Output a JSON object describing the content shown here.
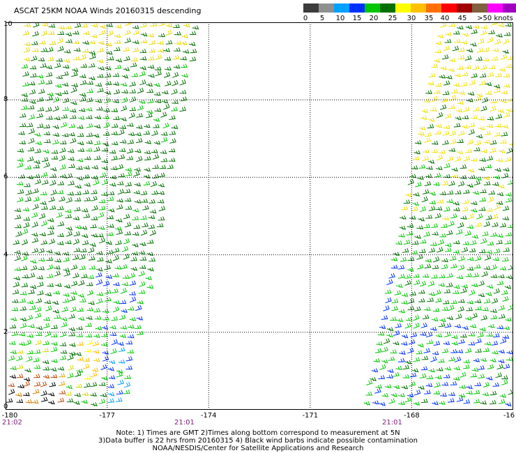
{
  "title": "ASCAT 25KM NOAA Winds 20160315 descending",
  "colorbar": {
    "swatches": [
      {
        "color": "#3c3c3c"
      },
      {
        "color": "#909090"
      },
      {
        "color": "#00a0ff"
      },
      {
        "color": "#0030ff"
      },
      {
        "color": "#00c800"
      },
      {
        "color": "#007000"
      },
      {
        "color": "#ffff00"
      },
      {
        "color": "#ffc000"
      },
      {
        "color": "#ff7000"
      },
      {
        "color": "#ff0000"
      },
      {
        "color": "#a00000"
      },
      {
        "color": "#806040"
      },
      {
        "color": "#ff00ff"
      },
      {
        "color": "#a000c0"
      },
      {
        "color": "#600080"
      }
    ],
    "ticks": [
      "0",
      "5",
      "10",
      "15",
      "20",
      "25",
      "30",
      "35",
      "40",
      "45",
      ">50 knots"
    ]
  },
  "map": {
    "lon_range": [
      -180,
      -165
    ],
    "lat_range": [
      0,
      10
    ],
    "lat_ticks": [
      "10",
      "8",
      "6",
      "4",
      "2",
      "0"
    ],
    "lon_ticks": [
      "-180",
      "-177",
      "-174",
      "-171",
      "-168",
      "-16"
    ],
    "pass_times": [
      "21:02",
      "21:01",
      "21:01"
    ],
    "gridlines": "dotted",
    "swaths": [
      {
        "name": "west",
        "lon_top": [
          -179.5,
          -174.3
        ],
        "lon_bottom": [
          -180,
          -176.5
        ]
      },
      {
        "name": "east",
        "lon_top": [
          -167.2,
          -165
        ],
        "lon_bottom": [
          -169.5,
          -165
        ]
      }
    ]
  },
  "notes": {
    "line1": "Note: 1) Times are GMT 2)Times along bottom correspond to measurement at 5N",
    "line2": "3)Data buffer is 22 hrs from 20160315 4) Black wind barbs indicate possible contamination",
    "line3": "NOAA/NESDIS/Center for Satellite Applications and Research"
  }
}
